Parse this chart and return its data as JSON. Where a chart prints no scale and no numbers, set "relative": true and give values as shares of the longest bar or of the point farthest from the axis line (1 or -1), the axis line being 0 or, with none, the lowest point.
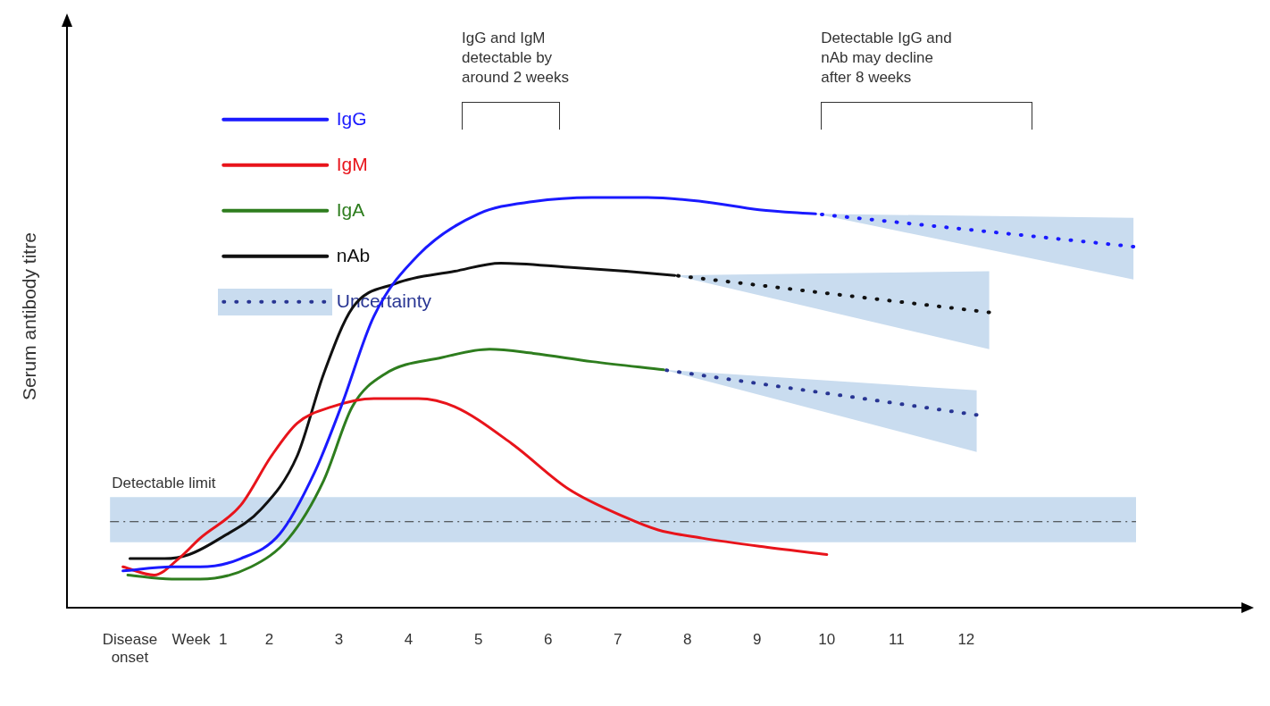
{
  "chart_data": {
    "type": "line",
    "relative": true,
    "ylabel": "Serum antibody titre",
    "xlim": [
      -0.9,
      16
    ],
    "xticks": [
      {
        "value": 0,
        "label": "Disease\nonset"
      },
      {
        "value": 1,
        "label": "Week  1"
      },
      2,
      3,
      4,
      5,
      6,
      7,
      8,
      9,
      10,
      11,
      12
    ],
    "grid": false,
    "marker": "none",
    "legend": "top left",
    "annotations": [
      "IgG and IgM\ndetectable by\naround 2 weeks",
      "Detectable IgG and\nnAb may decline\nafter 8 weeks"
    ],
    "bands": [
      {
        "axis": "y",
        "from": 0.16,
        "to": 0.27,
        "label": "Detectable limit",
        "color": "#c9dcef"
      }
    ],
    "ref_lines": [
      {
        "axis": "y",
        "value": 0.21,
        "color": "#333333",
        "line_style": "dashed"
      }
    ],
    "series": [
      {
        "name": "IgG",
        "color": "#1a1aff",
        "line_style": "solid",
        "x": [
          -0.1,
          0.6,
          1.01,
          1.59,
          2.15,
          2.65,
          3.03,
          3.5,
          4.14,
          5.0,
          5.79,
          6.63,
          7.43,
          8.21,
          9.03,
          9.84
        ],
        "values": [
          0.09,
          0.1,
          0.1,
          0.12,
          0.18,
          0.33,
          0.49,
          0.71,
          0.86,
          0.96,
          0.99,
          1.0,
          1.0,
          0.99,
          0.97,
          0.96
        ]
      },
      {
        "name": "IgM",
        "color": "#e8141b",
        "line_style": "solid",
        "x": [
          -0.1,
          0.35,
          0.7,
          1.01,
          1.59,
          2.03,
          2.4,
          2.9,
          3.5,
          4.14,
          4.66,
          5.48,
          6.29,
          7.12,
          7.58,
          8.21,
          9.03,
          10.0
        ],
        "values": [
          0.1,
          0.08,
          0.12,
          0.17,
          0.25,
          0.37,
          0.45,
          0.49,
          0.51,
          0.51,
          0.49,
          0.4,
          0.29,
          0.22,
          0.19,
          0.17,
          0.15,
          0.13
        ]
      },
      {
        "name": "IgA",
        "color": "#2e7d1e",
        "line_style": "solid",
        "x": [
          -0.03,
          0.6,
          1.01,
          1.74,
          2.28,
          2.78,
          3.19,
          3.66,
          4.48,
          5.16,
          5.79,
          6.63,
          7.66
        ],
        "values": [
          0.08,
          0.07,
          0.07,
          0.1,
          0.17,
          0.31,
          0.49,
          0.57,
          0.61,
          0.63,
          0.62,
          0.6,
          0.58
        ]
      },
      {
        "name": "nAb",
        "color": "#111111",
        "line_style": "solid",
        "x": [
          0,
          0.5,
          0.85,
          1.3,
          1.88,
          2.4,
          2.78,
          3.19,
          3.81,
          4.66,
          5.32,
          6.29,
          7.12,
          7.82
        ],
        "values": [
          0.12,
          0.12,
          0.13,
          0.17,
          0.24,
          0.37,
          0.57,
          0.73,
          0.79,
          0.82,
          0.84,
          0.83,
          0.82,
          0.81
        ]
      },
      {
        "color": "#1a1aff",
        "line_style": "dotted",
        "x": [
          9.84,
          14.4
        ],
        "values": [
          0.96,
          0.88
        ],
        "lower": [
          0.96,
          0.8
        ],
        "upper": [
          0.96,
          0.95
        ]
      },
      {
        "color": "#111111",
        "line_style": "dotted",
        "x": [
          7.82,
          12.33
        ],
        "values": [
          0.81,
          0.72
        ],
        "lower": [
          0.81,
          0.63
        ],
        "upper": [
          0.81,
          0.82
        ]
      },
      {
        "name": "Uncertainty",
        "color": "#283593",
        "line_style": "dotted",
        "x": [
          7.66,
          12.15
        ],
        "values": [
          0.58,
          0.47
        ],
        "lower": [
          0.58,
          0.38
        ],
        "upper": [
          0.58,
          0.53
        ]
      }
    ]
  }
}
